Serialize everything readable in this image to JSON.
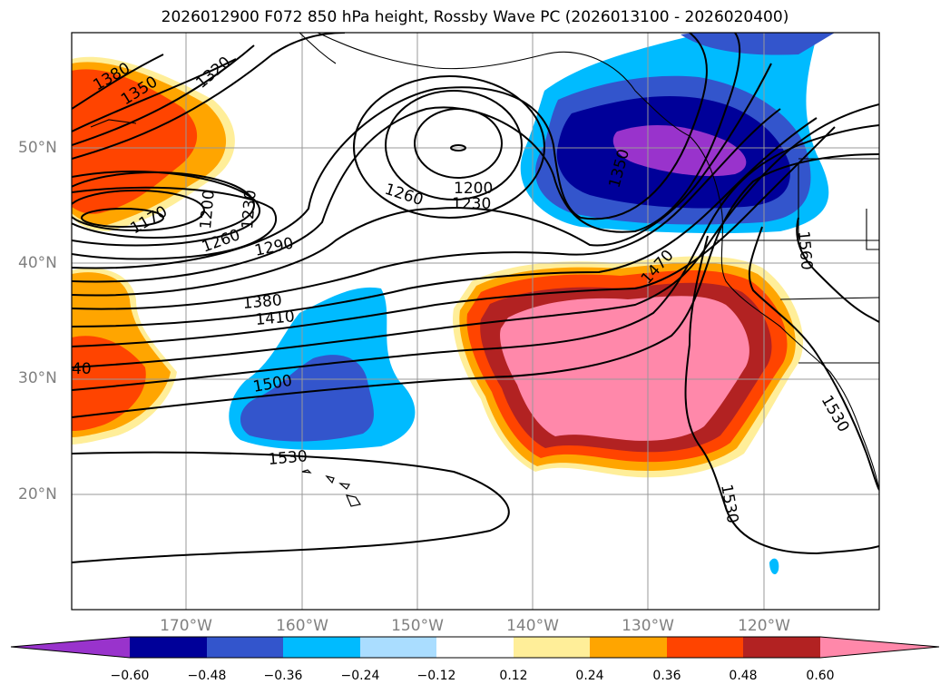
{
  "title": "2026012900 F072 850 hPa height, Rossby Wave PC (2026013100 - 2026020400)",
  "lat_labels": [
    "50°N",
    "40°N",
    "30°N",
    "20°N"
  ],
  "lon_labels": [
    "170°W",
    "160°W",
    "150°W",
    "140°W",
    "130°W",
    "120°W"
  ],
  "colorbar": {
    "ticks": [
      "−0.60",
      "−0.48",
      "−0.36",
      "−0.24",
      "−0.12",
      "0.12",
      "0.24",
      "0.36",
      "0.48",
      "0.60"
    ],
    "colors": [
      "#9933cc",
      "#000099",
      "#3355cc",
      "#00bbff",
      "#aaddff",
      "#ffffff",
      "#ffee99",
      "#ffa500",
      "#ff4400",
      "#b22222",
      "#ff88aa"
    ]
  },
  "contour_labels": [
    "1380",
    "1350",
    "1320",
    "1170",
    "1200",
    "1230",
    "1260",
    "1290",
    "1260",
    "1200",
    "1230",
    "1380",
    "1410",
    "40",
    "1500",
    "1530",
    "1470",
    "1350",
    "1560",
    "1530",
    "1530"
  ]
}
